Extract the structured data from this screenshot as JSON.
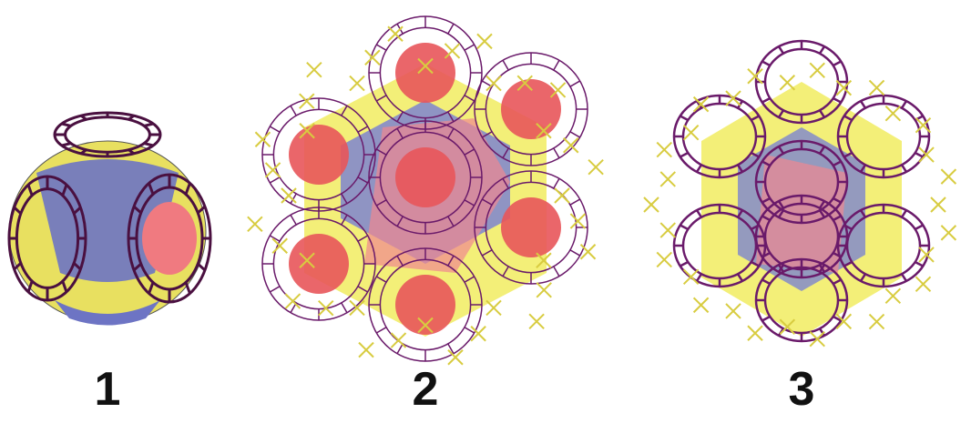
{
  "panels": [
    {
      "label": "1"
    },
    {
      "label": "2"
    },
    {
      "label": "3"
    }
  ]
}
